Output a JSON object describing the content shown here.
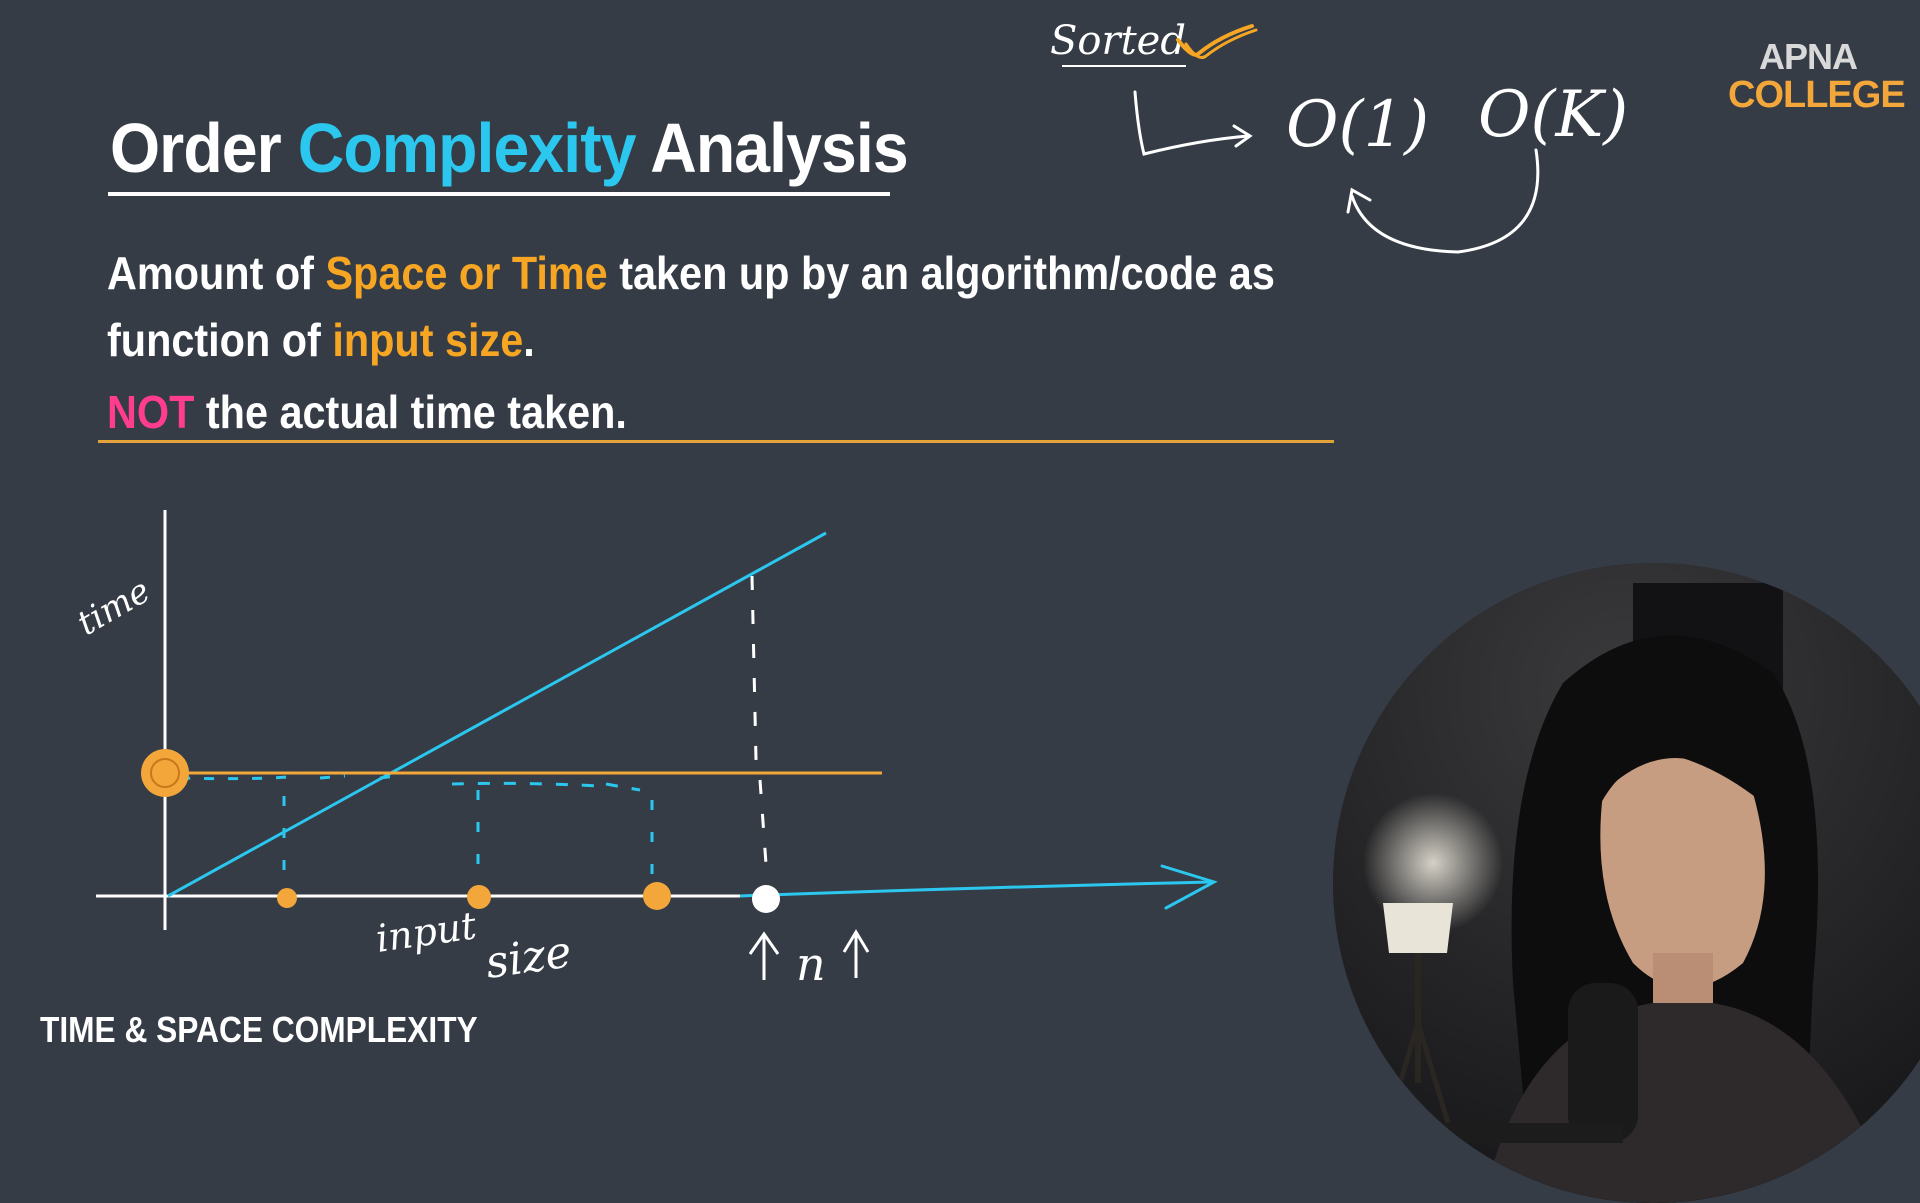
{
  "slide": {
    "title": {
      "part1": "Order ",
      "accent": "Complexity",
      "part2": " Analysis"
    },
    "definition": {
      "l1_a": "Amount of ",
      "l1_hl": "Space or Time",
      "l1_b": " taken up by an algorithm/code as",
      "l2_a": "function of ",
      "l2_hl": "input size",
      "l2_b": ".",
      "l3_not": "NOT",
      "l3_b": " the actual time taken."
    },
    "footer": "TIME & SPACE COMPLEXITY"
  },
  "logo": {
    "top": "APNA",
    "bottom": "COLLEGE"
  },
  "annotations": {
    "sorted": "Sorted",
    "o1": "O(1)",
    "ok": "O(K)",
    "time": "time",
    "input": "input",
    "size": "size",
    "n": "n"
  },
  "colors": {
    "background": "#353c46",
    "accent_blue": "#2bc7ee",
    "highlight_orange": "#f6a623",
    "not_pink": "#ff3c8e"
  },
  "icons": {
    "check": "check-mark-icon",
    "arrow": "arrow-icon"
  }
}
